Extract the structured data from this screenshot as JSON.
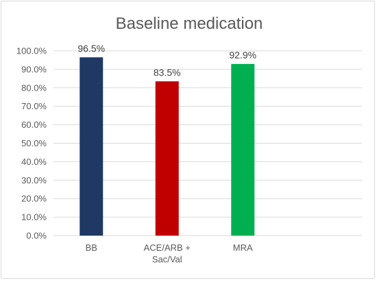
{
  "chart_data": {
    "type": "bar",
    "title": "Baseline medication",
    "xlabel": "",
    "ylabel": "",
    "categories": [
      "BB",
      "ACE/ARB + Sac/Val",
      "MRA"
    ],
    "category_lines": [
      [
        "BB"
      ],
      [
        "ACE/ARB +",
        "Sac/Val"
      ],
      [
        "MRA"
      ]
    ],
    "values": [
      96.5,
      83.5,
      92.9
    ],
    "data_labels": [
      "96.5%",
      "83.5%",
      "92.9%"
    ],
    "colors": [
      "#1f3864",
      "#c00000",
      "#00b050"
    ],
    "ylim": [
      0,
      100
    ],
    "yticks": [
      0,
      10,
      20,
      30,
      40,
      50,
      60,
      70,
      80,
      90,
      100
    ],
    "ytick_labels": [
      "0.0%",
      "10.0%",
      "20.0%",
      "30.0%",
      "40.0%",
      "50.0%",
      "60.0%",
      "70.0%",
      "80.0%",
      "90.0%",
      "100.0%"
    ],
    "grid": true,
    "legend": "none"
  }
}
